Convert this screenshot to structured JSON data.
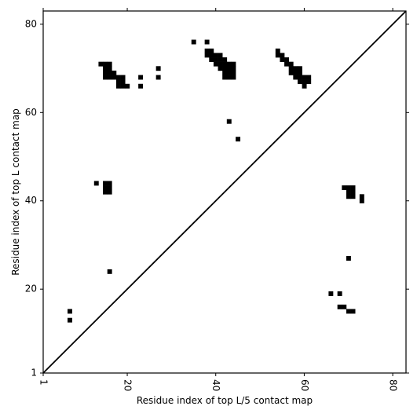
{
  "chart_data": {
    "type": "heatmap",
    "xlabel": "Residue index of top L/5 contact map",
    "ylabel": "Residue index of top L contact map",
    "xlim": [
      1,
      83
    ],
    "ylim": [
      1,
      83
    ],
    "xticks": [
      "1",
      "20",
      "40",
      "60",
      "80"
    ],
    "yticks": [
      "1",
      "20",
      "40",
      "60",
      "80"
    ],
    "xtick_values": [
      1,
      20,
      40,
      60,
      80
    ],
    "ytick_values": [
      1,
      20,
      40,
      60,
      80
    ],
    "diagonal": true,
    "grid": false,
    "colors": {
      "contact": "#000000",
      "background": "#ffffff",
      "axis": "#000000"
    },
    "upper_contacts": [
      [
        14,
        71
      ],
      [
        15,
        71
      ],
      [
        16,
        71
      ],
      [
        15,
        70
      ],
      [
        16,
        70
      ],
      [
        15,
        69
      ],
      [
        16,
        69
      ],
      [
        17,
        69
      ],
      [
        15,
        68
      ],
      [
        16,
        68
      ],
      [
        17,
        68
      ],
      [
        18,
        68
      ],
      [
        19,
        68
      ],
      [
        18,
        67
      ],
      [
        19,
        67
      ],
      [
        18,
        66
      ],
      [
        19,
        66
      ],
      [
        20,
        66
      ],
      [
        23,
        68
      ],
      [
        23,
        66
      ],
      [
        27,
        70
      ],
      [
        27,
        68
      ],
      [
        35,
        76
      ],
      [
        38,
        76
      ],
      [
        38,
        74
      ],
      [
        39,
        74
      ],
      [
        38,
        73
      ],
      [
        39,
        73
      ],
      [
        40,
        73
      ],
      [
        41,
        73
      ],
      [
        39,
        72
      ],
      [
        40,
        72
      ],
      [
        41,
        72
      ],
      [
        42,
        72
      ],
      [
        40,
        71
      ],
      [
        41,
        71
      ],
      [
        42,
        71
      ],
      [
        43,
        71
      ],
      [
        44,
        71
      ],
      [
        41,
        70
      ],
      [
        42,
        70
      ],
      [
        43,
        70
      ],
      [
        44,
        70
      ],
      [
        42,
        69
      ],
      [
        43,
        69
      ],
      [
        44,
        69
      ],
      [
        42,
        68
      ],
      [
        43,
        68
      ],
      [
        44,
        68
      ],
      [
        43,
        58
      ],
      [
        45,
        54
      ],
      [
        54,
        74
      ],
      [
        54,
        73
      ],
      [
        55,
        73
      ],
      [
        55,
        72
      ],
      [
        56,
        72
      ],
      [
        56,
        71
      ],
      [
        57,
        71
      ],
      [
        57,
        70
      ],
      [
        58,
        70
      ],
      [
        59,
        70
      ],
      [
        57,
        69
      ],
      [
        58,
        69
      ],
      [
        59,
        69
      ],
      [
        58,
        68
      ],
      [
        59,
        68
      ],
      [
        60,
        68
      ],
      [
        61,
        68
      ],
      [
        59,
        67
      ],
      [
        60,
        67
      ],
      [
        61,
        67
      ],
      [
        60,
        66
      ],
      [
        13,
        44
      ],
      [
        15,
        44
      ],
      [
        16,
        44
      ],
      [
        15,
        43
      ],
      [
        16,
        43
      ],
      [
        15,
        42
      ],
      [
        16,
        42
      ],
      [
        16,
        24
      ],
      [
        7,
        15
      ],
      [
        7,
        13
      ]
    ],
    "lower_contacts": [
      [
        69,
        43
      ],
      [
        70,
        43
      ],
      [
        71,
        43
      ],
      [
        70,
        42
      ],
      [
        71,
        42
      ],
      [
        70,
        41
      ],
      [
        71,
        41
      ],
      [
        73,
        41
      ],
      [
        73,
        40
      ],
      [
        70,
        27
      ],
      [
        66,
        19
      ],
      [
        68,
        19
      ],
      [
        68,
        16
      ],
      [
        69,
        16
      ],
      [
        70,
        15
      ],
      [
        71,
        15
      ]
    ]
  }
}
